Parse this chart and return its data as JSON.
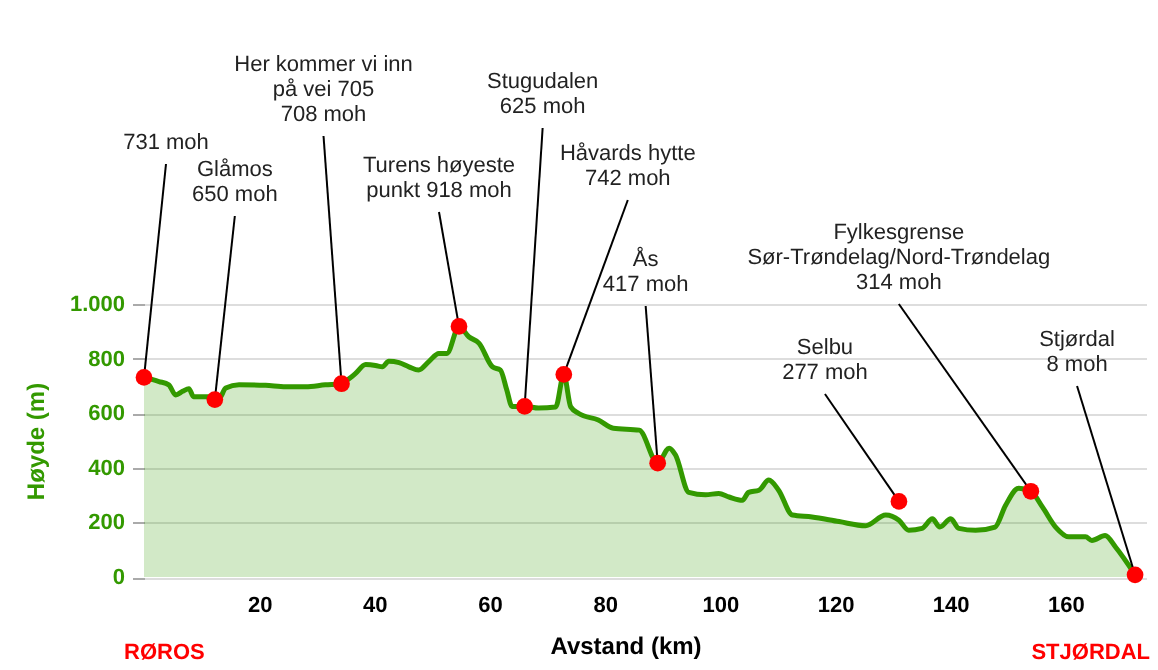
{
  "chart_data": {
    "type": "area",
    "xlabel": "Avstand (km)",
    "ylabel": "Høyde (m)",
    "xlim": [
      0,
      174
    ],
    "xticks": [
      20,
      40,
      60,
      80,
      100,
      120,
      140,
      160
    ],
    "ylim": [
      0,
      1000
    ],
    "yticks": [
      0,
      200,
      400,
      600,
      800,
      {
        "value": 1000,
        "label": "1.000"
      }
    ],
    "grid": "y",
    "series": [
      {
        "color": "#339900",
        "x": [
          0,
          2.6,
          4.3,
          5.5,
          6.7,
          7.8,
          8.6,
          11.9,
          13.0,
          14.2,
          16.5,
          21.1,
          24.6,
          28.1,
          31.5,
          34.3,
          35.6,
          36.7,
          38.5,
          40.2,
          41.4,
          42.5,
          44.3,
          46.0,
          47.7,
          49.5,
          51.2,
          52.6,
          54.7,
          56.4,
          58.2,
          60.5,
          61.9,
          63.0,
          63.9,
          66.3,
          68.5,
          71.5,
          72.9,
          74.1,
          75.5,
          78.9,
          81.5,
          86.0,
          89.2,
          91.2,
          92.3,
          94.6,
          97.5,
          99.8,
          101.6,
          103.9,
          105.0,
          106.8,
          108.5,
          110.2,
          112.6,
          116.0,
          120.7,
          125.3,
          128.8,
          131.1,
          132.8,
          135.1,
          136.9,
          138.2,
          140.1,
          141.5,
          144.4,
          147.8,
          149.6,
          151.9,
          154.0,
          156.0,
          158.3,
          160.6,
          163.5,
          164.6,
          166.9,
          168.7,
          172.1
        ],
        "values": [
          731,
          716,
          704,
          667,
          680,
          690,
          660,
          660,
          653,
          692,
          704,
          702,
          697,
          697,
          704,
          708,
          726,
          745,
          778,
          775,
          770,
          790,
          785,
          770,
          758,
          790,
          819,
          819,
          918,
          880,
          856,
          770,
          758,
          685,
          625,
          625,
          619,
          623,
          742,
          623,
          599,
          575,
          545,
          538,
          417,
          472,
          447,
          310,
          301,
          306,
          293,
          281,
          310,
          318,
          355,
          318,
          227,
          220,
          203,
          188,
          227,
          208,
          171,
          178,
          213,
          183,
          213,
          178,
          171,
          183,
          262,
          325,
          314,
          257,
          183,
          147,
          147,
          134,
          152,
          110,
          8
        ]
      },
      {
        "type": "scatter",
        "color": "#ff0000",
        "marker": "circle",
        "x": [
          0,
          12.3,
          34.3,
          54.7,
          66.1,
          72.9,
          89.2,
          131.1,
          154.0,
          172.1
        ],
        "values": [
          731,
          650,
          708,
          918,
          625,
          742,
          417,
          277,
          314,
          8
        ]
      }
    ],
    "annotations": [
      {
        "text": "731 moh",
        "x": 0,
        "y": 731
      },
      {
        "text": "Glåmos\n650 moh",
        "x": 12.3,
        "y": 650
      },
      {
        "text": "Her kommer vi inn\npå vei 705\n708 moh",
        "x": 34.3,
        "y": 708
      },
      {
        "text": "Turens høyeste\npunkt 918 moh",
        "x": 54.7,
        "y": 918
      },
      {
        "text": "Stugudalen\n625 moh",
        "x": 66.1,
        "y": 625
      },
      {
        "text": "Håvards hytte\n742 moh",
        "x": 72.9,
        "y": 742
      },
      {
        "text": "Ås\n417 moh",
        "x": 89.2,
        "y": 417
      },
      {
        "text": "Selbu\n277 moh",
        "x": 131.1,
        "y": 277
      },
      {
        "text": "Fylkesgrense\nSør-Trøndelag/Nord-Trøndelag\n314 moh",
        "x": 154.0,
        "y": 314
      },
      {
        "text": "Stjørdal\n8 moh",
        "x": 172.1,
        "y": 8
      },
      "RØROS",
      "STJØRDAL"
    ]
  }
}
